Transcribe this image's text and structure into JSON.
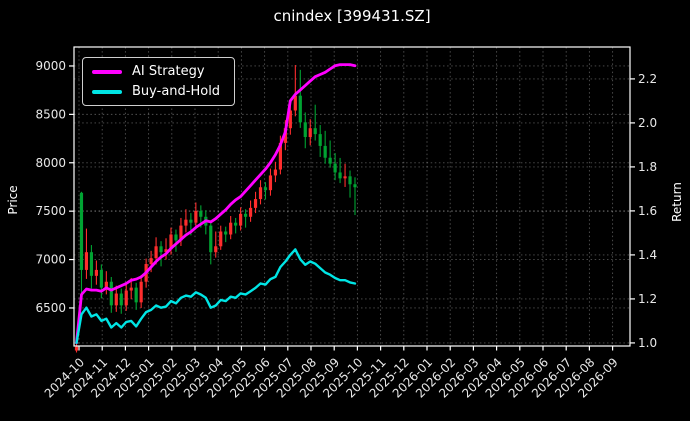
{
  "title": "cnindex [399431.SZ]",
  "chart_data": {
    "type": "candlestick+line",
    "title": "cnindex [399431.SZ]",
    "background": "#000000",
    "grid": true,
    "legend_position": "upper-left",
    "x_axis": {
      "tick_rotation_deg": 45,
      "tick_labels": [
        "2024-10",
        "2024-11",
        "2024-12",
        "2025-01",
        "2025-02",
        "2025-03",
        "2025-04",
        "2025-05",
        "2025-06",
        "2025-07",
        "2025-08",
        "2025-09",
        "2025-10",
        "2025-11",
        "2025-12",
        "2026-01",
        "2026-02",
        "2026-03",
        "2026-04",
        "2026-05",
        "2026-06",
        "2026-07",
        "2026-08",
        "2026-09"
      ],
      "data_span": [
        "2024-10",
        "2025-10"
      ]
    },
    "price_axis": {
      "label": "Price",
      "ticks": [
        6500,
        7000,
        7500,
        8000,
        8500,
        9000
      ],
      "range": [
        6107,
        9196
      ]
    },
    "return_axis": {
      "label": "Return",
      "ticks": [
        1.0,
        1.2,
        1.4,
        1.6,
        1.8,
        2.0,
        2.2
      ],
      "range": [
        0.986,
        2.345
      ]
    },
    "candles": {
      "convention": "china: red = up (close>=open), green = down",
      "up_color": "#ff2d2d",
      "down_color": "#00a332",
      "dates": [
        "2024-10-01",
        "2024-10-08",
        "2024-10-14",
        "2024-10-21",
        "2024-10-27",
        "2024-11-03",
        "2024-11-09",
        "2024-11-16",
        "2024-11-22",
        "2024-11-29",
        "2024-12-05",
        "2024-12-12",
        "2024-12-18",
        "2024-12-25",
        "2024-12-31",
        "2025-01-07",
        "2025-01-13",
        "2025-01-20",
        "2025-01-26",
        "2025-02-02",
        "2025-02-08",
        "2025-02-15",
        "2025-02-21",
        "2025-02-28",
        "2025-03-06",
        "2025-03-13",
        "2025-03-19",
        "2025-03-26",
        "2025-04-01",
        "2025-04-08",
        "2025-04-14",
        "2025-04-21",
        "2025-04-27",
        "2025-05-04",
        "2025-05-10",
        "2025-05-17",
        "2025-05-23",
        "2025-05-30",
        "2025-06-05",
        "2025-06-12",
        "2025-06-18",
        "2025-06-25",
        "2025-07-01",
        "2025-07-08",
        "2025-07-14",
        "2025-07-21",
        "2025-07-27",
        "2025-08-03",
        "2025-08-09",
        "2025-08-16",
        "2025-08-22",
        "2025-08-29",
        "2025-09-04",
        "2025-09-11",
        "2025-09-17",
        "2025-09-24",
        "2025-10-01"
      ],
      "ohlc": [
        [
          6060,
          6160,
          6040,
          6100
        ],
        [
          7690,
          7700,
          6650,
          6893
        ],
        [
          6893,
          7320,
          6800,
          7076
        ],
        [
          7076,
          7150,
          6700,
          6832
        ],
        [
          6832,
          6990,
          6740,
          6893
        ],
        [
          6893,
          6950,
          6600,
          6710
        ],
        [
          6710,
          6880,
          6640,
          6771
        ],
        [
          6771,
          6820,
          6450,
          6527
        ],
        [
          6527,
          6730,
          6460,
          6649
        ],
        [
          6649,
          6700,
          6440,
          6527
        ],
        [
          6527,
          6760,
          6470,
          6680
        ],
        [
          6680,
          6810,
          6590,
          6710
        ],
        [
          6710,
          6760,
          6480,
          6558
        ],
        [
          6558,
          6840,
          6500,
          6771
        ],
        [
          6771,
          7010,
          6710,
          6954
        ],
        [
          6954,
          7090,
          6870,
          7015
        ],
        [
          7015,
          7230,
          6950,
          7137
        ],
        [
          7137,
          7190,
          6930,
          7076
        ],
        [
          7076,
          7220,
          7000,
          7107
        ],
        [
          7107,
          7330,
          7050,
          7259
        ],
        [
          7259,
          7310,
          7080,
          7198
        ],
        [
          7198,
          7430,
          7140,
          7351
        ],
        [
          7351,
          7520,
          7280,
          7412
        ],
        [
          7412,
          7480,
          7250,
          7381
        ],
        [
          7381,
          7590,
          7320,
          7503
        ],
        [
          7503,
          7560,
          7330,
          7442
        ],
        [
          7442,
          7510,
          7260,
          7351
        ],
        [
          7351,
          7400,
          6950,
          7076
        ],
        [
          7076,
          7290,
          7020,
          7137
        ],
        [
          7137,
          7350,
          7100,
          7290
        ],
        [
          7290,
          7340,
          7180,
          7259
        ],
        [
          7259,
          7450,
          7210,
          7381
        ],
        [
          7381,
          7430,
          7270,
          7351
        ],
        [
          7351,
          7540,
          7300,
          7473
        ],
        [
          7473,
          7520,
          7330,
          7442
        ],
        [
          7442,
          7610,
          7390,
          7534
        ],
        [
          7534,
          7700,
          7480,
          7625
        ],
        [
          7625,
          7820,
          7570,
          7747
        ],
        [
          7747,
          7800,
          7620,
          7717
        ],
        [
          7717,
          7940,
          7660,
          7869
        ],
        [
          7869,
          8010,
          7800,
          7930
        ],
        [
          7930,
          8280,
          7880,
          8205
        ],
        [
          8205,
          8440,
          8130,
          8357
        ],
        [
          8357,
          8640,
          8290,
          8540
        ],
        [
          8540,
          9010,
          8480,
          8693
        ],
        [
          8693,
          8960,
          8360,
          8418
        ],
        [
          8418,
          8520,
          8150,
          8266
        ],
        [
          8266,
          8450,
          8180,
          8357
        ],
        [
          8357,
          8600,
          8230,
          8296
        ],
        [
          8296,
          8390,
          8060,
          8174
        ],
        [
          8174,
          8330,
          7990,
          8052
        ],
        [
          8052,
          8230,
          7950,
          7991
        ],
        [
          7991,
          8100,
          7820,
          7900
        ],
        [
          7900,
          8050,
          7790,
          7839
        ],
        [
          7839,
          7990,
          7750,
          7860
        ],
        [
          7860,
          7920,
          7640,
          7778
        ],
        [
          7778,
          7850,
          7460,
          7747
        ]
      ]
    },
    "series": [
      {
        "name": "AI Strategy",
        "axis": "return",
        "color": "#ff00ff",
        "values": [
          1.0,
          1.22,
          1.245,
          1.24,
          1.24,
          1.235,
          1.25,
          1.24,
          1.25,
          1.26,
          1.27,
          1.285,
          1.29,
          1.3,
          1.32,
          1.345,
          1.37,
          1.39,
          1.405,
          1.43,
          1.45,
          1.47,
          1.49,
          1.505,
          1.525,
          1.54,
          1.555,
          1.55,
          1.565,
          1.585,
          1.605,
          1.63,
          1.65,
          1.665,
          1.69,
          1.715,
          1.74,
          1.765,
          1.79,
          1.82,
          1.855,
          1.9,
          1.96,
          2.1,
          2.13,
          2.15,
          2.17,
          2.19,
          2.21,
          2.22,
          2.23,
          2.245,
          2.26,
          2.265,
          2.265,
          2.265,
          2.26
        ]
      },
      {
        "name": "Buy-and-Hold",
        "axis": "return",
        "color": "#00e5e5",
        "values": [
          1.0,
          1.13,
          1.16,
          1.12,
          1.13,
          1.1,
          1.11,
          1.07,
          1.09,
          1.07,
          1.095,
          1.1,
          1.075,
          1.11,
          1.14,
          1.15,
          1.17,
          1.16,
          1.165,
          1.19,
          1.18,
          1.205,
          1.215,
          1.21,
          1.23,
          1.22,
          1.205,
          1.16,
          1.17,
          1.195,
          1.19,
          1.21,
          1.205,
          1.225,
          1.22,
          1.235,
          1.25,
          1.27,
          1.265,
          1.29,
          1.3,
          1.345,
          1.37,
          1.4,
          1.425,
          1.38,
          1.355,
          1.37,
          1.36,
          1.34,
          1.32,
          1.31,
          1.295,
          1.285,
          1.285,
          1.275,
          1.27
        ]
      }
    ]
  }
}
